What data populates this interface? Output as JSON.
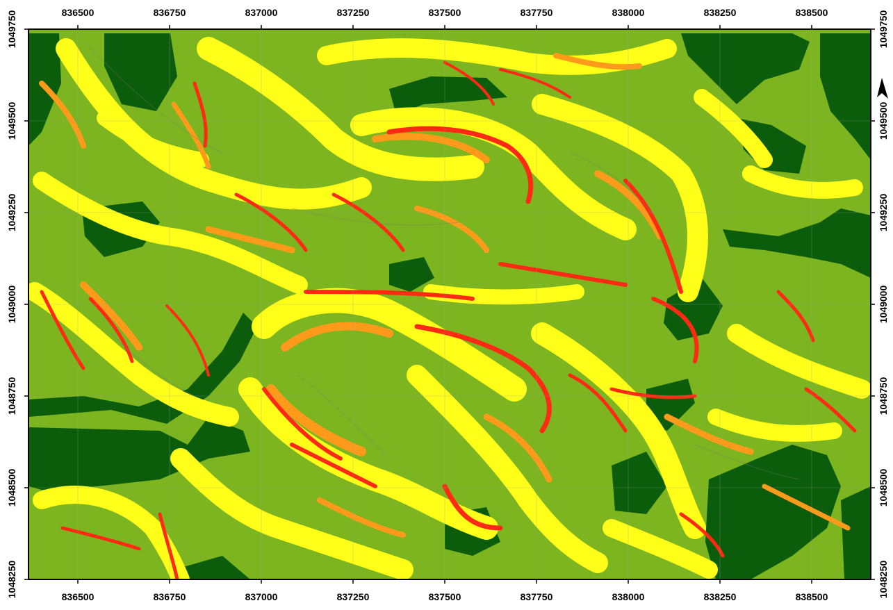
{
  "map": {
    "x_ticks": [
      "836500",
      "836750",
      "837000",
      "837250",
      "837500",
      "837750",
      "838000",
      "838250",
      "838500"
    ],
    "y_ticks": [
      "1049750",
      "1049500",
      "1049250",
      "1049000",
      "1048750",
      "1048500",
      "1048250"
    ],
    "colors": {
      "class_1": "#0b5c0b",
      "class_2": "#7cb51f",
      "class_3": "#ffff1a",
      "class_4": "#ff9a1a",
      "class_5": "#ff2a14",
      "outline": "#777777"
    },
    "icons": [
      "north-arrow-icon"
    ]
  }
}
